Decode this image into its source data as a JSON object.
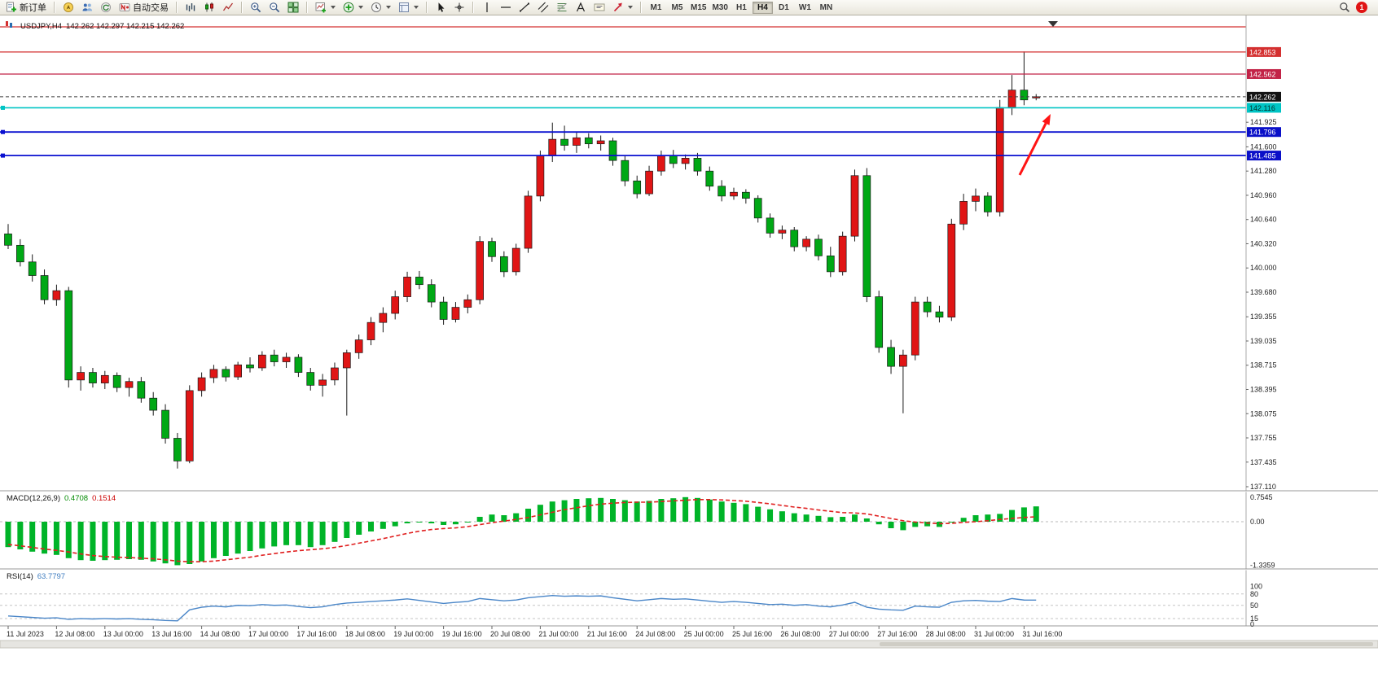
{
  "toolbar": {
    "new_order_label": "新订单",
    "auto_trading_label": "自动交易",
    "active_timeframe": "H4",
    "notification_count": "1",
    "items": [
      {
        "icon": "new-order",
        "label": "新订单",
        "name": "new-order"
      },
      {
        "sep": true
      },
      {
        "icon": "compass",
        "name": "navigator"
      },
      {
        "icon": "people",
        "name": "market-watch"
      },
      {
        "icon": "refresh",
        "name": "refresh"
      },
      {
        "icon": "autotrade",
        "label": "自动交易",
        "name": "auto-trading"
      },
      {
        "sep": true
      },
      {
        "icon": "bars-chart",
        "name": "bars-chart"
      },
      {
        "icon": "candle-chart",
        "name": "candlestick-chart"
      },
      {
        "icon": "line-chart",
        "name": "line-chart"
      },
      {
        "sep": true
      },
      {
        "icon": "zoom-in",
        "name": "zoom-in"
      },
      {
        "icon": "zoom-out",
        "name": "zoom-out"
      },
      {
        "icon": "tile-windows",
        "name": "tile-windows"
      },
      {
        "sep": true
      },
      {
        "icon": "new-chart",
        "name": "new-chart",
        "drop": true
      },
      {
        "icon": "indicators",
        "name": "indicators",
        "drop": true
      },
      {
        "icon": "clock",
        "name": "periods",
        "drop": true
      },
      {
        "icon": "template",
        "name": "templates",
        "drop": true
      },
      {
        "sep": true
      },
      {
        "icon": "cursor",
        "name": "cursor-tool"
      },
      {
        "icon": "crosshair",
        "name": "crosshair-tool"
      },
      {
        "sep": true
      },
      {
        "icon": "vline",
        "name": "vertical-line-tool"
      },
      {
        "icon": "hline",
        "name": "horizontal-line-tool"
      },
      {
        "icon": "trendline",
        "name": "trendline-tool"
      },
      {
        "icon": "channel",
        "name": "channel-tool"
      },
      {
        "icon": "fibonacci",
        "name": "fibonacci-tool"
      },
      {
        "icon": "text",
        "name": "text-tool"
      },
      {
        "icon": "label",
        "name": "label-tool"
      },
      {
        "icon": "arrows",
        "name": "arrows-tool",
        "drop": true
      },
      {
        "sep": true
      },
      {
        "tf": "M1"
      },
      {
        "tf": "M5"
      },
      {
        "tf": "M15"
      },
      {
        "tf": "M30"
      },
      {
        "tf": "H1"
      },
      {
        "tf": "H4"
      },
      {
        "tf": "D1"
      },
      {
        "tf": "W1"
      },
      {
        "tf": "MN"
      }
    ],
    "right_items": [
      {
        "icon": "search",
        "name": "search"
      },
      {
        "badge": "1",
        "name": "notifications"
      }
    ]
  },
  "chart": {
    "title_symbol": "USDJPY,H4",
    "title_ohlc": "142.262 142.297 142.215 142.262",
    "symbol": "USDJPY",
    "period": "H4",
    "levels": [
      {
        "price": 143.185,
        "color": "#d43030",
        "width": 1.3,
        "label": "",
        "show_label": false
      },
      {
        "price": 142.853,
        "color": "#d43030",
        "width": 1.3,
        "label": "142.853",
        "box_bg": "#d43030",
        "box_fg": "#ffffff"
      },
      {
        "price": 142.562,
        "color": "#c22347",
        "width": 1.3,
        "label": "142.562",
        "box_bg": "#c22347",
        "box_fg": "#ffffff"
      },
      {
        "price": 142.262,
        "color": "#3c3c3c",
        "width": 1,
        "dash": "4,3",
        "label": "142.262",
        "box_bg": "#141414",
        "box_fg": "#ffffff"
      },
      {
        "price": 142.116,
        "color": "#00c4c4",
        "width": 1.6,
        "label": "142.116",
        "box_bg": "#00c4c4",
        "box_fg": "#00332f",
        "marker": true
      },
      {
        "price": 141.796,
        "color": "#0a10d0",
        "width": 1.8,
        "label": "141.796",
        "box_bg": "#0a10c8",
        "box_fg": "#ffffff",
        "marker": true
      },
      {
        "price": 141.485,
        "color": "#0a10d0",
        "width": 1.8,
        "label": "141.485",
        "box_bg": "#0a10c8",
        "box_fg": "#ffffff",
        "marker": true
      }
    ],
    "price_ticks": [
      "141.925",
      "141.600",
      "141.280",
      "140.960",
      "140.640",
      "140.320",
      "140.000",
      "139.680",
      "139.355",
      "139.035",
      "138.715",
      "138.395",
      "138.075",
      "137.755",
      "137.435",
      "137.110"
    ],
    "time_labels": [
      "11 Jul 2023",
      "12 Jul 08:00",
      "13 Jul 00:00",
      "13 Jul 16:00",
      "14 Jul 08:00",
      "17 Jul 00:00",
      "17 Jul 16:00",
      "18 Jul 08:00",
      "19 Jul 00:00",
      "19 Jul 16:00",
      "20 Jul 08:00",
      "21 Jul 00:00",
      "21 Jul 16:00",
      "24 Jul 08:00",
      "25 Jul 00:00",
      "25 Jul 16:00",
      "26 Jul 08:00",
      "27 Jul 00:00",
      "27 Jul 16:00",
      "28 Jul 08:00",
      "31 Jul 00:00",
      "31 Jul 16:00"
    ],
    "annotation_arrow": {
      "from": [
        1252,
        196
      ],
      "to": [
        1290,
        121
      ],
      "color": "#ff1414"
    }
  },
  "macd": {
    "label_name": "MACD(12,26,9)",
    "value_main": "0.4708",
    "value_signal": "0.1514",
    "axis_labels": [
      "0.7545",
      "0.00",
      "-1.3359"
    ]
  },
  "rsi": {
    "label_name": "RSI(14)",
    "value": "63.7797",
    "axis_labels": [
      "100",
      "80",
      "50",
      "15",
      "0"
    ],
    "level_lines": [
      80,
      50,
      15
    ]
  },
  "chart_data": [
    {
      "type": "candlestick",
      "title": "USDJPY H4",
      "up_color": "#e01515",
      "down_color": "#00a815",
      "ylim": [
        137.11,
        143.34
      ],
      "x_labels_every": 4,
      "ohlc": [
        [
          140.45,
          140.58,
          140.25,
          140.3
        ],
        [
          140.3,
          140.38,
          140.02,
          140.08
        ],
        [
          140.08,
          140.18,
          139.82,
          139.9
        ],
        [
          139.9,
          139.98,
          139.52,
          139.58
        ],
        [
          139.58,
          139.78,
          139.5,
          139.7
        ],
        [
          139.7,
          139.75,
          138.42,
          138.52
        ],
        [
          138.52,
          138.7,
          138.38,
          138.62
        ],
        [
          138.62,
          138.68,
          138.42,
          138.48
        ],
        [
          138.48,
          138.64,
          138.4,
          138.58
        ],
        [
          138.58,
          138.62,
          138.36,
          138.42
        ],
        [
          138.42,
          138.55,
          138.3,
          138.5
        ],
        [
          138.5,
          138.56,
          138.22,
          138.28
        ],
        [
          138.28,
          138.36,
          138.05,
          138.12
        ],
        [
          138.12,
          138.2,
          137.68,
          137.75
        ],
        [
          137.75,
          137.82,
          137.35,
          137.45
        ],
        [
          137.45,
          138.45,
          137.42,
          138.38
        ],
        [
          138.38,
          138.62,
          138.3,
          138.55
        ],
        [
          138.55,
          138.72,
          138.48,
          138.66
        ],
        [
          138.66,
          138.7,
          138.5,
          138.56
        ],
        [
          138.56,
          138.76,
          138.52,
          138.72
        ],
        [
          138.72,
          138.82,
          138.62,
          138.68
        ],
        [
          138.68,
          138.9,
          138.64,
          138.85
        ],
        [
          138.85,
          138.92,
          138.7,
          138.76
        ],
        [
          138.76,
          138.88,
          138.68,
          138.82
        ],
        [
          138.82,
          138.86,
          138.56,
          138.62
        ],
        [
          138.62,
          138.68,
          138.38,
          138.45
        ],
        [
          138.45,
          138.6,
          138.3,
          138.52
        ],
        [
          138.52,
          138.75,
          138.45,
          138.68
        ],
        [
          138.68,
          138.92,
          138.05,
          138.88
        ],
        [
          138.88,
          139.12,
          138.8,
          139.05
        ],
        [
          139.05,
          139.35,
          138.98,
          139.28
        ],
        [
          139.28,
          139.48,
          139.15,
          139.4
        ],
        [
          139.4,
          139.7,
          139.32,
          139.62
        ],
        [
          139.62,
          139.95,
          139.55,
          139.88
        ],
        [
          139.88,
          139.96,
          139.72,
          139.78
        ],
        [
          139.78,
          139.85,
          139.48,
          139.55
        ],
        [
          139.55,
          139.62,
          139.25,
          139.32
        ],
        [
          139.32,
          139.55,
          139.28,
          139.48
        ],
        [
          139.48,
          139.65,
          139.4,
          139.58
        ],
        [
          139.58,
          140.42,
          139.52,
          140.35
        ],
        [
          140.35,
          140.4,
          140.08,
          140.15
        ],
        [
          140.15,
          140.22,
          139.88,
          139.95
        ],
        [
          139.95,
          140.32,
          139.9,
          140.26
        ],
        [
          140.26,
          141.02,
          140.2,
          140.95
        ],
        [
          140.95,
          141.55,
          140.88,
          141.48
        ],
        [
          141.48,
          141.92,
          141.4,
          141.7
        ],
        [
          141.7,
          141.88,
          141.55,
          141.62
        ],
        [
          141.62,
          141.8,
          141.52,
          141.72
        ],
        [
          141.72,
          141.78,
          141.58,
          141.64
        ],
        [
          141.64,
          141.75,
          141.55,
          141.68
        ],
        [
          141.68,
          141.72,
          141.35,
          141.42
        ],
        [
          141.42,
          141.48,
          141.08,
          141.15
        ],
        [
          141.15,
          141.22,
          140.92,
          140.98
        ],
        [
          140.98,
          141.35,
          140.95,
          141.28
        ],
        [
          141.28,
          141.55,
          141.22,
          141.48
        ],
        [
          141.48,
          141.56,
          141.32,
          141.38
        ],
        [
          141.38,
          141.5,
          141.3,
          141.45
        ],
        [
          141.45,
          141.52,
          141.22,
          141.28
        ],
        [
          141.28,
          141.34,
          141.02,
          141.08
        ],
        [
          141.08,
          141.16,
          140.88,
          140.95
        ],
        [
          140.95,
          141.06,
          140.9,
          141.0
        ],
        [
          141.0,
          141.04,
          140.85,
          140.92
        ],
        [
          140.92,
          140.96,
          140.6,
          140.66
        ],
        [
          140.66,
          140.72,
          140.4,
          140.46
        ],
        [
          140.46,
          140.56,
          140.38,
          140.5
        ],
        [
          140.5,
          140.54,
          140.22,
          140.28
        ],
        [
          140.28,
          140.42,
          140.22,
          140.38
        ],
        [
          140.38,
          140.44,
          140.1,
          140.16
        ],
        [
          140.16,
          140.28,
          139.88,
          139.95
        ],
        [
          139.95,
          140.48,
          139.9,
          140.42
        ],
        [
          140.42,
          141.3,
          140.35,
          141.22
        ],
        [
          141.22,
          141.32,
          139.55,
          139.62
        ],
        [
          139.62,
          139.7,
          138.88,
          138.95
        ],
        [
          138.95,
          139.05,
          138.6,
          138.7
        ],
        [
          138.7,
          138.92,
          138.08,
          138.85
        ],
        [
          138.85,
          139.62,
          138.78,
          139.55
        ],
        [
          139.55,
          139.62,
          139.35,
          139.42
        ],
        [
          139.42,
          139.5,
          139.28,
          139.35
        ],
        [
          139.35,
          140.65,
          139.3,
          140.58
        ],
        [
          140.58,
          140.98,
          140.5,
          140.88
        ],
        [
          140.88,
          141.05,
          140.75,
          140.95
        ],
        [
          140.95,
          141.0,
          140.68,
          140.74
        ],
        [
          140.74,
          142.22,
          140.68,
          142.12
        ],
        [
          142.12,
          142.55,
          142.02,
          142.35
        ],
        [
          142.35,
          142.86,
          142.15,
          142.22
        ],
        [
          142.262,
          142.297,
          142.215,
          142.262
        ]
      ]
    },
    {
      "type": "bar",
      "name": "MACD(12,26,9)",
      "ylim": [
        -1.45,
        0.85
      ],
      "hist": [
        -0.78,
        -0.85,
        -0.92,
        -0.98,
        -1.02,
        -1.12,
        -1.18,
        -1.2,
        -1.18,
        -1.17,
        -1.15,
        -1.17,
        -1.22,
        -1.28,
        -1.336,
        -1.3,
        -1.22,
        -1.12,
        -1.05,
        -0.98,
        -0.9,
        -0.82,
        -0.76,
        -0.72,
        -0.72,
        -0.78,
        -0.72,
        -0.62,
        -0.5,
        -0.4,
        -0.3,
        -0.22,
        -0.14,
        -0.05,
        -0.02,
        -0.05,
        -0.1,
        -0.08,
        0.0,
        0.15,
        0.22,
        0.2,
        0.26,
        0.4,
        0.52,
        0.62,
        0.66,
        0.7,
        0.72,
        0.73,
        0.7,
        0.66,
        0.62,
        0.64,
        0.7,
        0.72,
        0.7545,
        0.73,
        0.68,
        0.62,
        0.58,
        0.54,
        0.46,
        0.38,
        0.32,
        0.26,
        0.22,
        0.18,
        0.14,
        0.15,
        0.22,
        0.1,
        -0.08,
        -0.2,
        -0.26,
        -0.16,
        -0.14,
        -0.16,
        -0.02,
        0.12,
        0.2,
        0.22,
        0.24,
        0.36,
        0.44,
        0.4708
      ],
      "signal": [
        -0.7,
        -0.74,
        -0.79,
        -0.84,
        -0.88,
        -0.93,
        -0.99,
        -1.04,
        -1.07,
        -1.09,
        -1.1,
        -1.12,
        -1.14,
        -1.17,
        -1.21,
        -1.23,
        -1.23,
        -1.21,
        -1.17,
        -1.13,
        -1.09,
        -1.03,
        -0.98,
        -0.93,
        -0.89,
        -0.86,
        -0.83,
        -0.79,
        -0.73,
        -0.66,
        -0.59,
        -0.52,
        -0.44,
        -0.36,
        -0.29,
        -0.24,
        -0.21,
        -0.19,
        -0.15,
        -0.09,
        -0.03,
        0.02,
        0.07,
        0.13,
        0.21,
        0.29,
        0.37,
        0.43,
        0.49,
        0.54,
        0.57,
        0.59,
        0.6,
        0.6,
        0.62,
        0.64,
        0.66,
        0.68,
        0.68,
        0.67,
        0.65,
        0.63,
        0.59,
        0.55,
        0.5,
        0.45,
        0.41,
        0.36,
        0.32,
        0.28,
        0.27,
        0.24,
        0.17,
        0.1,
        0.03,
        -0.01,
        -0.04,
        -0.06,
        -0.05,
        -0.02,
        0.0,
        0.03,
        0.07,
        0.1,
        0.13,
        0.1514
      ],
      "hist_color": "#00b428",
      "signal_color": "#e02020"
    },
    {
      "type": "line",
      "name": "RSI(14)",
      "ylim": [
        0,
        100
      ],
      "line_color": "#4a86c8",
      "values": [
        22,
        20,
        18,
        16,
        17,
        13,
        15,
        14,
        15,
        14,
        15,
        13,
        12,
        10,
        9,
        38,
        45,
        48,
        46,
        50,
        49,
        52,
        50,
        51,
        47,
        44,
        46,
        52,
        56,
        58,
        60,
        62,
        64,
        67,
        63,
        59,
        55,
        58,
        60,
        68,
        65,
        62,
        64,
        70,
        73,
        76,
        74,
        75,
        74,
        75,
        70,
        66,
        62,
        65,
        68,
        66,
        67,
        64,
        61,
        58,
        60,
        58,
        55,
        52,
        53,
        50,
        52,
        48,
        46,
        51,
        58,
        45,
        40,
        38,
        37,
        48,
        46,
        45,
        58,
        62,
        63,
        61,
        60,
        68,
        64,
        63.78
      ]
    }
  ]
}
